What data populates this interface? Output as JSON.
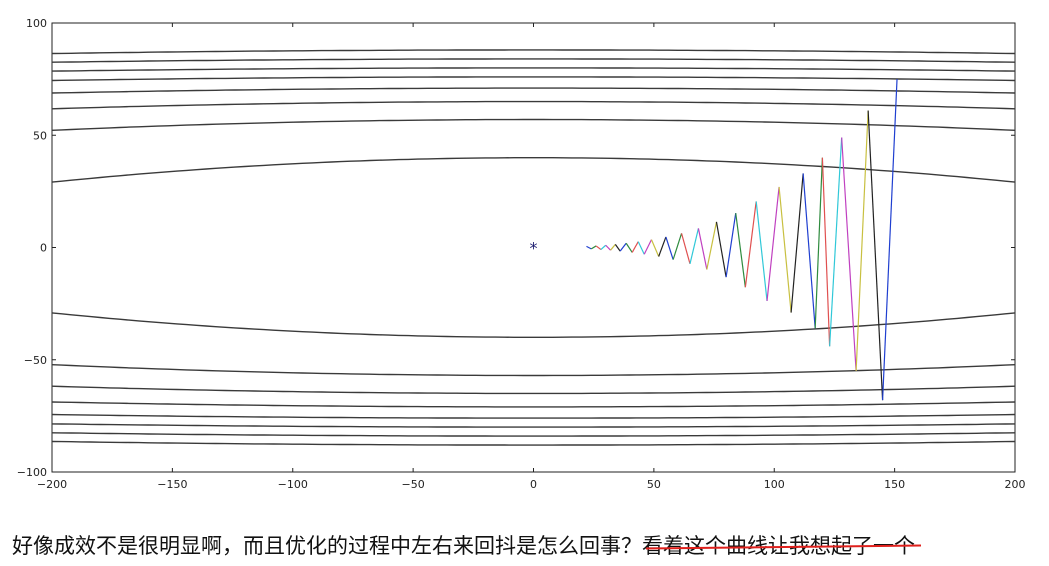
{
  "chart_data": {
    "type": "line",
    "title": "",
    "xlabel": "",
    "ylabel": "",
    "xlim": [
      -200,
      200
    ],
    "ylim": [
      -100,
      100
    ],
    "grid": false,
    "xticks": [
      -200,
      -150,
      -100,
      -50,
      0,
      50,
      100,
      150,
      200
    ],
    "xtick_labels": [
      "−200",
      "−150",
      "−100",
      "−50",
      "0",
      "50",
      "100",
      "150",
      "200"
    ],
    "yticks": [
      100,
      50,
      0,
      -50,
      -100
    ],
    "ytick_labels": [
      "100",
      "50",
      "0",
      "−50",
      "−100"
    ],
    "contour_color": "#3a3a3a",
    "contours": [
      {
        "b": 40,
        "k": 0.000272
      },
      {
        "b": 57,
        "k": 0.00012
      },
      {
        "b": 65,
        "k": 8e-05
      },
      {
        "b": 71,
        "k": 5.5e-05
      },
      {
        "b": 76,
        "k": 4e-05
      },
      {
        "b": 80,
        "k": 3.6e-05
      },
      {
        "b": 84,
        "k": 3.7e-05
      },
      {
        "b": 88,
        "k": 4e-05
      }
    ],
    "minimum_marker": {
      "x": 0,
      "y": 0,
      "color": "#1a1a6e"
    },
    "path_colors": [
      "#1f3fd0",
      "#2e8b3e",
      "#e05050",
      "#30c8d8",
      "#c040c0",
      "#c8c040",
      "#222222"
    ],
    "path": [
      {
        "x": 22,
        "y": 0.5
      },
      {
        "x": 24,
        "y": -0.6
      },
      {
        "x": 26,
        "y": 0.7
      },
      {
        "x": 28,
        "y": -0.9
      },
      {
        "x": 30,
        "y": 1.0
      },
      {
        "x": 32,
        "y": -1.2
      },
      {
        "x": 34,
        "y": 1.4
      },
      {
        "x": 36,
        "y": -1.6
      },
      {
        "x": 38.5,
        "y": 1.9
      },
      {
        "x": 41,
        "y": -2.2
      },
      {
        "x": 43.5,
        "y": 2.6
      },
      {
        "x": 46,
        "y": -3.0
      },
      {
        "x": 49,
        "y": 3.5
      },
      {
        "x": 52,
        "y": -4.0
      },
      {
        "x": 55,
        "y": 4.7
      },
      {
        "x": 58,
        "y": -5.4
      },
      {
        "x": 61.5,
        "y": 6.3
      },
      {
        "x": 65,
        "y": -7.3
      },
      {
        "x": 68.5,
        "y": 8.5
      },
      {
        "x": 72,
        "y": -9.8
      },
      {
        "x": 76,
        "y": 11.4
      },
      {
        "x": 80,
        "y": -13.2
      },
      {
        "x": 84,
        "y": 15.3
      },
      {
        "x": 88,
        "y": -17.7
      },
      {
        "x": 92.5,
        "y": 20.5
      },
      {
        "x": 97,
        "y": -23.8
      },
      {
        "x": 102,
        "y": 27.0
      },
      {
        "x": 107,
        "y": -29.0
      },
      {
        "x": 112,
        "y": 33.0
      },
      {
        "x": 117,
        "y": -36.0
      },
      {
        "x": 120,
        "y": 40.0
      },
      {
        "x": 123,
        "y": -44.0
      },
      {
        "x": 128,
        "y": 49.0
      },
      {
        "x": 134,
        "y": -55.0
      },
      {
        "x": 139,
        "y": 61.0
      },
      {
        "x": 145,
        "y": -68.0
      },
      {
        "x": 151,
        "y": 75.0
      }
    ]
  },
  "caption": {
    "main": "好像成效不是很明显啊，而且优化的过程中左右来回抖是怎么回事？",
    "struck": "看着这个曲线让我想起了一个",
    "strike_color": "#e0201c"
  }
}
